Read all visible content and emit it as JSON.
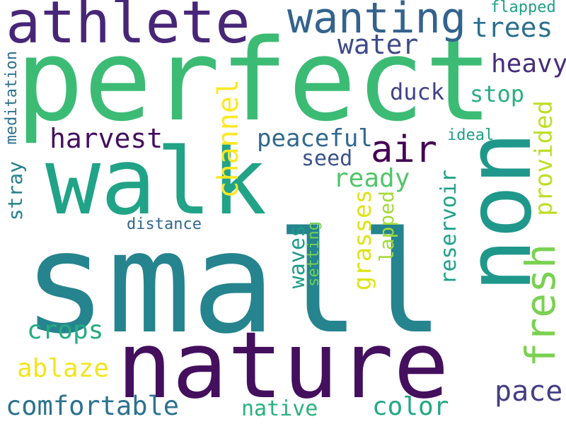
{
  "words": [
    {
      "text": "small",
      "color": "#25848e"
    },
    {
      "text": "perfect",
      "color": "#3cbb75"
    },
    {
      "text": "walk",
      "color": "#20a386"
    },
    {
      "text": "nature",
      "color": "#440f5d"
    },
    {
      "text": "athlete",
      "color": "#482677"
    },
    {
      "text": "non",
      "color": "#1f988b"
    },
    {
      "text": "wanting",
      "color": "#33638d"
    },
    {
      "text": "air",
      "color": "#440154"
    },
    {
      "text": "fresh",
      "color": "#7ad151"
    },
    {
      "text": "trees",
      "color": "#2d708e"
    },
    {
      "text": "water",
      "color": "#3e4a89"
    },
    {
      "text": "heavy",
      "color": "#472d7b"
    },
    {
      "text": "harvest",
      "color": "#440f5d"
    },
    {
      "text": "channel",
      "color": "#fde725"
    },
    {
      "text": "duck",
      "color": "#414487"
    },
    {
      "text": "stop",
      "color": "#29af7f"
    },
    {
      "text": "peaceful",
      "color": "#31688e"
    },
    {
      "text": "seed",
      "color": "#3b528b"
    },
    {
      "text": "ready",
      "color": "#52c569"
    },
    {
      "text": "provided",
      "color": "#bddf26"
    },
    {
      "text": "ideal",
      "color": "#1fa187"
    },
    {
      "text": "meditation",
      "color": "#2c728e"
    },
    {
      "text": "stray",
      "color": "#26818e"
    },
    {
      "text": "distance",
      "color": "#31688e"
    },
    {
      "text": "waves",
      "color": "#1e9b8a"
    },
    {
      "text": "setting",
      "color": "#73d056"
    },
    {
      "text": "grasses",
      "color": "#dfe318"
    },
    {
      "text": "lapped",
      "color": "#a2da37"
    },
    {
      "text": "reservoir",
      "color": "#1fa088"
    },
    {
      "text": "crops",
      "color": "#25ab82"
    },
    {
      "text": "ablaze",
      "color": "#f1e51d"
    },
    {
      "text": "comfortable",
      "color": "#2c728e"
    },
    {
      "text": "native",
      "color": "#2ab07f"
    },
    {
      "text": "color",
      "color": "#22a785"
    },
    {
      "text": "pace",
      "color": "#433e85"
    },
    {
      "text": "flapped",
      "color": "#1fa187"
    }
  ]
}
